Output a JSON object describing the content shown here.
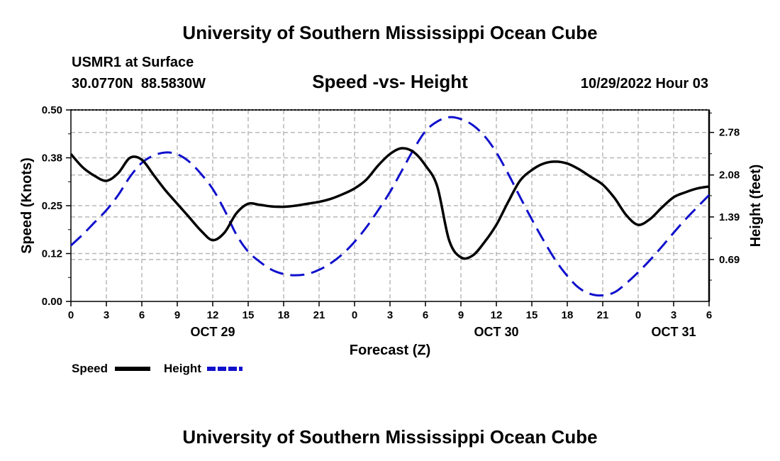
{
  "header": {
    "main_title": "University of Southern Mississippi Ocean Cube",
    "station": "USMR1 at Surface",
    "coords": "30.0770N  88.5830W",
    "chart_title": "Speed -vs- Height",
    "datetime": "10/29/2022 Hour 03",
    "footer_title": "University of Southern Mississippi Ocean Cube"
  },
  "legend": {
    "speed_label": "Speed",
    "height_label": "Height"
  },
  "colors": {
    "speed": "#000000",
    "height": "#1010cc",
    "grid": "#b8b8b8"
  },
  "chart_data": {
    "type": "line",
    "title": "Speed -vs- Height",
    "xlabel": "Forecast (Z)",
    "ylabel": "Speed (Knots)",
    "y2label": "Height (feet)",
    "x_range": [
      0,
      54
    ],
    "x_ticks": [
      0,
      3,
      6,
      9,
      12,
      15,
      18,
      21,
      24,
      27,
      30,
      33,
      36,
      39,
      42,
      45,
      48,
      51,
      54
    ],
    "x_tick_labels": [
      "0",
      "3",
      "6",
      "9",
      "12",
      "15",
      "18",
      "21",
      "0",
      "3",
      "6",
      "9",
      "12",
      "15",
      "18",
      "21",
      "0",
      "3",
      "6"
    ],
    "date_labels": [
      {
        "x": 12,
        "label": "OCT 29"
      },
      {
        "x": 36,
        "label": "OCT 30"
      },
      {
        "x": 51,
        "label": "OCT 31"
      }
    ],
    "y_left": {
      "range": [
        0,
        0.5
      ],
      "ticks": [
        0.0,
        0.125,
        0.25,
        0.375,
        0.5
      ],
      "tick_labels": [
        "0.00",
        "0.12",
        "0.25",
        "0.38",
        "0.50"
      ]
    },
    "y_right": {
      "range": [
        0,
        3.15
      ],
      "ticks": [
        0.69,
        1.39,
        2.08,
        2.78
      ],
      "tick_labels": [
        "0.69",
        "1.39",
        "2.08",
        "2.78"
      ]
    },
    "series": [
      {
        "name": "Speed",
        "axis": "left",
        "x": [
          0,
          1,
          2,
          3,
          4,
          5,
          6,
          7,
          8,
          9,
          10,
          11,
          12,
          13,
          14,
          15,
          16,
          17,
          18,
          19,
          20,
          21,
          22,
          23,
          24,
          25,
          26,
          27,
          28,
          29,
          30,
          31,
          32,
          33,
          34,
          35,
          36,
          37,
          38,
          39,
          40,
          41,
          42,
          43,
          44,
          45,
          46,
          47,
          48,
          49,
          50,
          51,
          52,
          53,
          54
        ],
        "values": [
          0.385,
          0.35,
          0.328,
          0.315,
          0.335,
          0.375,
          0.37,
          0.33,
          0.29,
          0.255,
          0.22,
          0.185,
          0.16,
          0.18,
          0.23,
          0.255,
          0.252,
          0.248,
          0.247,
          0.25,
          0.255,
          0.26,
          0.268,
          0.28,
          0.295,
          0.318,
          0.355,
          0.385,
          0.4,
          0.39,
          0.355,
          0.3,
          0.16,
          0.115,
          0.12,
          0.155,
          0.2,
          0.26,
          0.315,
          0.343,
          0.36,
          0.365,
          0.36,
          0.345,
          0.325,
          0.305,
          0.27,
          0.225,
          0.2,
          0.215,
          0.245,
          0.272,
          0.285,
          0.295,
          0.3
        ]
      },
      {
        "name": "Height",
        "axis": "right",
        "x": [
          0,
          1,
          2,
          3,
          4,
          5,
          6,
          7,
          8,
          9,
          10,
          11,
          12,
          13,
          14,
          15,
          16,
          17,
          18,
          19,
          20,
          21,
          22,
          23,
          24,
          25,
          26,
          27,
          28,
          29,
          30,
          31,
          32,
          33,
          34,
          35,
          36,
          37,
          38,
          39,
          40,
          41,
          42,
          43,
          44,
          45,
          46,
          47,
          48,
          49,
          50,
          51,
          52,
          53,
          54
        ],
        "values": [
          0.92,
          1.1,
          1.3,
          1.5,
          1.75,
          2.05,
          2.28,
          2.4,
          2.45,
          2.42,
          2.3,
          2.1,
          1.85,
          1.5,
          1.1,
          0.82,
          0.65,
          0.52,
          0.45,
          0.43,
          0.45,
          0.52,
          0.63,
          0.78,
          0.98,
          1.22,
          1.5,
          1.8,
          2.15,
          2.5,
          2.8,
          2.96,
          3.03,
          3.0,
          2.9,
          2.72,
          2.45,
          2.1,
          1.72,
          1.35,
          1.0,
          0.68,
          0.42,
          0.22,
          0.12,
          0.1,
          0.15,
          0.3,
          0.48,
          0.68,
          0.9,
          1.13,
          1.35,
          1.55,
          1.75
        ]
      }
    ]
  }
}
